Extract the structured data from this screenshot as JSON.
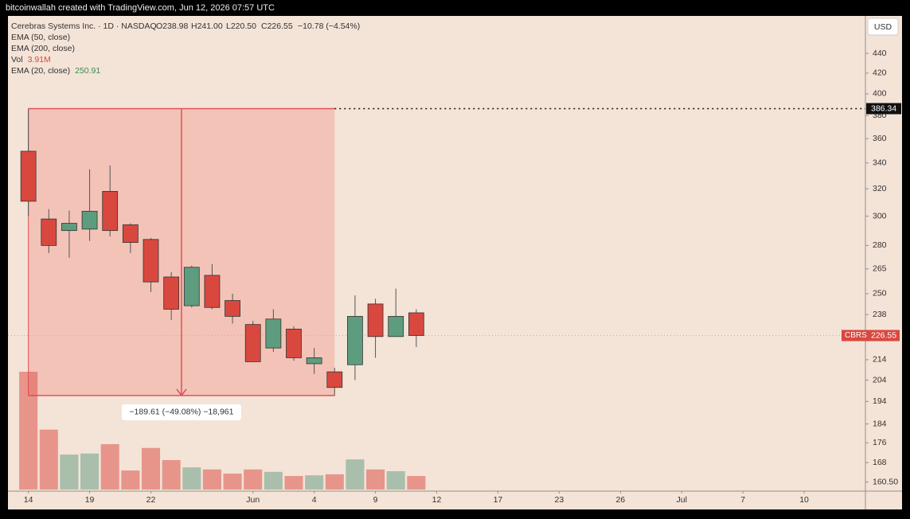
{
  "header": {
    "text": "bitcoinwallah created with TradingView.com, Jun 12, 2026 07:57 UTC"
  },
  "chart_data": {
    "type": "candlestick",
    "symbol": "Cerebras Systems Inc. · 1D · NASDAQ",
    "ohlc_text": [
      "O238.98",
      "H241.00",
      "L220.50",
      "C226.55"
    ],
    "change_text": "−10.78 (−4.54%)",
    "indicators": [
      {
        "name": "EMA (50, close)"
      },
      {
        "name": "EMA (200, close)"
      },
      {
        "name": "Vol",
        "value_label": "3.91M"
      },
      {
        "name": "EMA (20, close)",
        "value_label": "250.91"
      }
    ],
    "currency": "USD",
    "ticker": "CBRS",
    "open": [
      349.5,
      298,
      290,
      291,
      318,
      294,
      284,
      260,
      243,
      261,
      246,
      232.5,
      220,
      230,
      212,
      208,
      211.5,
      244,
      226,
      238.98
    ],
    "high": [
      386.34,
      305,
      304,
      335,
      338,
      295,
      285,
      263,
      267,
      268,
      250,
      234.5,
      241,
      231.5,
      220,
      210,
      249,
      247,
      253,
      241.0
    ],
    "low": [
      300,
      275,
      272,
      283,
      286,
      275,
      251,
      235,
      242,
      241,
      233,
      213,
      218,
      213.5,
      207,
      196.73,
      204,
      215,
      226,
      220.5
    ],
    "close": [
      310.7,
      280,
      295,
      303.5,
      290,
      282,
      257,
      241,
      266,
      242,
      237,
      213,
      235.5,
      215,
      215,
      200.5,
      237,
      226,
      237,
      226.55
    ],
    "volume": [
      34,
      17.3,
      10.1,
      10.4,
      13.1,
      5.5,
      12,
      8.5,
      6.4,
      5.8,
      4.6,
      5.8,
      5.1,
      3.9,
      4.1,
      4.4,
      8.7,
      5.8,
      5.3,
      3.91
    ],
    "up_color": "#5e9c7f",
    "down_color": "#d9483f",
    "measure_label": "−189.61 (−49.08%) −18,961",
    "log_scale": true,
    "ylim": [
      157.1,
      480.5
    ],
    "yticks": [
      440,
      420,
      400,
      380,
      360,
      340,
      320,
      300,
      280,
      265,
      250,
      238,
      214,
      204,
      194,
      184,
      176,
      168,
      {
        "value": 160.5,
        "label": "160.50"
      }
    ],
    "xlim": [
      -1,
      41
    ],
    "xticks": [
      {
        "value": 0,
        "label": "14"
      },
      {
        "value": 3,
        "label": "19"
      },
      {
        "value": 6,
        "label": "22"
      },
      {
        "value": 11,
        "label": "Jun"
      },
      {
        "value": 14,
        "label": "4"
      },
      {
        "value": 17,
        "label": "9"
      },
      {
        "value": 20,
        "label": "12"
      },
      {
        "value": 23,
        "label": "17"
      },
      {
        "value": 26,
        "label": "23"
      },
      {
        "value": 29,
        "label": "26"
      },
      {
        "value": 32,
        "label": "Jul"
      },
      {
        "value": 35,
        "label": "7"
      },
      {
        "value": 38,
        "label": "10"
      }
    ]
  }
}
